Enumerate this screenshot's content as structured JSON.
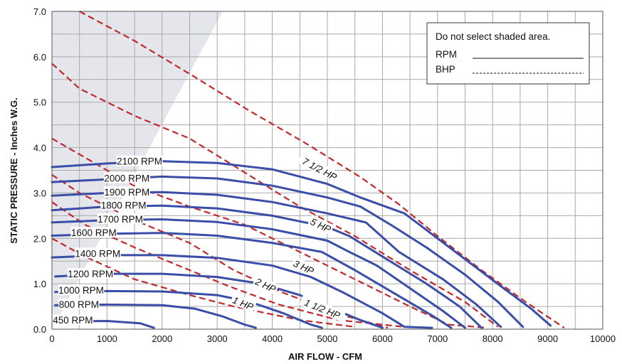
{
  "chart_data": {
    "type": "line",
    "title": "",
    "xlabel": "AIR FLOW - CFM",
    "ylabel": "STATIC PRESSURE - Inches W.G.",
    "xlim": [
      0,
      10000
    ],
    "ylim": [
      0,
      7.0
    ],
    "x_ticks": [
      0,
      1000,
      2000,
      3000,
      4000,
      5000,
      6000,
      7000,
      8000,
      9000,
      10000
    ],
    "x_tick_labels": [
      "0",
      "1000",
      "2000",
      "3000",
      "4000",
      "5000",
      "6000",
      "7000",
      "8000",
      "9000",
      "10000"
    ],
    "y_ticks": [
      0,
      1,
      2,
      3,
      4,
      5,
      6,
      7
    ],
    "y_tick_labels": [
      "0.0",
      "1.0",
      "2.0",
      "3.0",
      "4.0",
      "5.0",
      "6.0",
      "7.0"
    ],
    "grid": true,
    "shaded_region": {
      "x_at_top": 3100,
      "x_at_bottom": 0
    },
    "legend": {
      "placement": "top-right",
      "title": "Do not select shaded area.",
      "entries": [
        {
          "label": "RPM",
          "style": "solid"
        },
        {
          "label": "BHP",
          "style": "dashed"
        }
      ]
    },
    "colors": {
      "rpm": "#3a4ea8",
      "bhp": "#c0282b",
      "shade": "#e4e6eb",
      "grid": "#a9a9a9"
    },
    "rpm_series": [
      {
        "name": "2100 RPM",
        "label_at": [
          1590,
          3.7
        ],
        "points": [
          [
            0,
            3.57
          ],
          [
            1000,
            3.65
          ],
          [
            2000,
            3.7
          ],
          [
            3000,
            3.66
          ],
          [
            4000,
            3.52
          ],
          [
            5000,
            3.2
          ],
          [
            5600,
            2.9
          ],
          [
            6400,
            2.55
          ],
          [
            7000,
            2.0
          ],
          [
            7600,
            1.45
          ],
          [
            8200,
            0.9
          ],
          [
            8700,
            0.45
          ],
          [
            9050,
            0.08
          ]
        ]
      },
      {
        "name": "2000 RPM",
        "label_at": [
          1360,
          3.33
        ],
        "points": [
          [
            0,
            3.24
          ],
          [
            1000,
            3.3
          ],
          [
            2000,
            3.36
          ],
          [
            3000,
            3.32
          ],
          [
            4000,
            3.16
          ],
          [
            5000,
            2.9
          ],
          [
            5600,
            2.7
          ],
          [
            6150,
            2.3
          ],
          [
            6800,
            1.8
          ],
          [
            7500,
            1.2
          ],
          [
            8100,
            0.6
          ],
          [
            8550,
            0.05
          ]
        ]
      },
      {
        "name": "1900 RPM",
        "label_at": [
          1360,
          3.02
        ],
        "points": [
          [
            0,
            2.94
          ],
          [
            1000,
            3.0
          ],
          [
            2000,
            3.02
          ],
          [
            3000,
            2.96
          ],
          [
            4000,
            2.8
          ],
          [
            5000,
            2.55
          ],
          [
            5700,
            2.35
          ],
          [
            6300,
            1.7
          ],
          [
            7100,
            1.1
          ],
          [
            7700,
            0.55
          ],
          [
            8150,
            0.05
          ]
        ]
      },
      {
        "name": "1800 RPM",
        "label_at": [
          1300,
          2.73
        ],
        "points": [
          [
            0,
            2.62
          ],
          [
            1000,
            2.7
          ],
          [
            2000,
            2.72
          ],
          [
            3000,
            2.66
          ],
          [
            4000,
            2.5
          ],
          [
            5000,
            2.25
          ],
          [
            5400,
            2.05
          ],
          [
            6000,
            1.6
          ],
          [
            6800,
            1.0
          ],
          [
            7400,
            0.5
          ],
          [
            7800,
            0.03
          ]
        ]
      },
      {
        "name": "1700 RPM",
        "label_at": [
          1240,
          2.43
        ],
        "points": [
          [
            0,
            2.35
          ],
          [
            1000,
            2.4
          ],
          [
            2000,
            2.42
          ],
          [
            3000,
            2.36
          ],
          [
            4000,
            2.2
          ],
          [
            5000,
            1.95
          ],
          [
            5400,
            1.7
          ],
          [
            5900,
            1.4
          ],
          [
            6500,
            0.9
          ],
          [
            7100,
            0.4
          ],
          [
            7500,
            0.03
          ]
        ]
      },
      {
        "name": "1600 RPM",
        "label_at": [
          760,
          2.13
        ],
        "points": [
          [
            0,
            2.06
          ],
          [
            1000,
            2.1
          ],
          [
            2000,
            2.12
          ],
          [
            3000,
            2.06
          ],
          [
            4000,
            1.9
          ],
          [
            4900,
            1.7
          ],
          [
            5500,
            1.3
          ],
          [
            6200,
            0.8
          ],
          [
            6900,
            0.3
          ],
          [
            7250,
            0.03
          ]
        ]
      },
      {
        "name": "1400 RPM",
        "label_at": [
          830,
          1.67
        ],
        "points": [
          [
            0,
            1.58
          ],
          [
            1000,
            1.63
          ],
          [
            2000,
            1.63
          ],
          [
            3000,
            1.57
          ],
          [
            4000,
            1.4
          ],
          [
            4700,
            1.15
          ],
          [
            5300,
            0.8
          ],
          [
            6000,
            0.35
          ],
          [
            6400,
            0.05
          ],
          [
            6900,
            0.03
          ]
        ]
      },
      {
        "name": "1200 RPM",
        "label_at": [
          700,
          1.22
        ],
        "points": [
          [
            60,
            1.16
          ],
          [
            1000,
            1.22
          ],
          [
            2000,
            1.22
          ],
          [
            3000,
            1.15
          ],
          [
            3800,
            1.0
          ],
          [
            4500,
            0.75
          ],
          [
            5000,
            0.5
          ],
          [
            5600,
            0.2
          ],
          [
            6000,
            0.03
          ]
        ]
      },
      {
        "name": "1000 RPM",
        "label_at": [
          530,
          0.86
        ],
        "points": [
          [
            60,
            0.82
          ],
          [
            1000,
            0.84
          ],
          [
            2000,
            0.83
          ],
          [
            3000,
            0.75
          ],
          [
            3600,
            0.6
          ],
          [
            4200,
            0.35
          ],
          [
            4700,
            0.1
          ],
          [
            4900,
            0.03
          ]
        ]
      },
      {
        "name": "800 RPM",
        "label_at": [
          490,
          0.55
        ],
        "points": [
          [
            60,
            0.53
          ],
          [
            1000,
            0.54
          ],
          [
            2000,
            0.53
          ],
          [
            2600,
            0.45
          ],
          [
            3100,
            0.28
          ],
          [
            3500,
            0.1
          ],
          [
            3700,
            0.03
          ]
        ]
      },
      {
        "name": "450 RPM",
        "label_at": [
          380,
          0.2
        ],
        "points": [
          [
            60,
            0.17
          ],
          [
            1000,
            0.18
          ],
          [
            1600,
            0.13
          ],
          [
            1850,
            0.03
          ]
        ]
      }
    ],
    "bhp_series": [
      {
        "name": "7 1/2 HP",
        "label_at": [
          4860,
          3.53
        ],
        "label_rotate": 28,
        "points": [
          [
            500,
            7.0
          ],
          [
            1500,
            6.35
          ],
          [
            2600,
            5.55
          ],
          [
            3600,
            4.8
          ],
          [
            4600,
            4.1
          ],
          [
            5600,
            3.35
          ],
          [
            6300,
            2.75
          ],
          [
            7000,
            2.05
          ],
          [
            7800,
            1.3
          ],
          [
            8600,
            0.6
          ],
          [
            9300,
            0.03
          ]
        ]
      },
      {
        "name": "5 HP",
        "label_at": [
          4880,
          2.29
        ],
        "label_rotate": 25,
        "points": [
          [
            0,
            5.85
          ],
          [
            500,
            5.3
          ],
          [
            1500,
            4.7
          ],
          [
            2500,
            4.2
          ],
          [
            3500,
            3.45
          ],
          [
            4500,
            2.7
          ],
          [
            5500,
            2.05
          ],
          [
            6500,
            1.3
          ],
          [
            7500,
            0.6
          ],
          [
            8100,
            0.05
          ]
        ]
      },
      {
        "name": "3 HP",
        "label_at": [
          4570,
          1.37
        ],
        "label_rotate": 25,
        "points": [
          [
            0,
            4.2
          ],
          [
            500,
            3.85
          ],
          [
            1500,
            3.15
          ],
          [
            2500,
            2.7
          ],
          [
            3500,
            2.3
          ],
          [
            4500,
            1.7
          ],
          [
            5500,
            1.1
          ],
          [
            6500,
            0.5
          ],
          [
            7200,
            0.1
          ],
          [
            7900,
            0.03
          ]
        ]
      },
      {
        "name": "2 HP",
        "label_at": [
          3880,
          0.97
        ],
        "label_rotate": 25,
        "points": [
          [
            0,
            3.4
          ],
          [
            500,
            3.0
          ],
          [
            1500,
            2.4
          ],
          [
            2500,
            1.9
          ],
          [
            3300,
            1.3
          ],
          [
            4200,
            0.8
          ],
          [
            5300,
            0.3
          ],
          [
            6100,
            0.03
          ]
        ]
      },
      {
        "name": "1 1/2 HP",
        "label_at": [
          4910,
          0.45
        ],
        "label_rotate": 22,
        "points": [
          [
            0,
            2.8
          ],
          [
            600,
            2.3
          ],
          [
            1500,
            1.8
          ],
          [
            2500,
            1.3
          ],
          [
            3200,
            0.95
          ],
          [
            4100,
            0.55
          ],
          [
            5200,
            0.2
          ],
          [
            6400,
            0.05
          ]
        ]
      },
      {
        "name": "1 HP",
        "label_at": [
          3470,
          0.57
        ],
        "label_rotate": 22,
        "points": [
          [
            0,
            2.0
          ],
          [
            600,
            1.6
          ],
          [
            1500,
            1.1
          ],
          [
            2500,
            0.75
          ],
          [
            3300,
            0.5
          ],
          [
            4500,
            0.2
          ],
          [
            5500,
            0.05
          ]
        ]
      }
    ]
  }
}
